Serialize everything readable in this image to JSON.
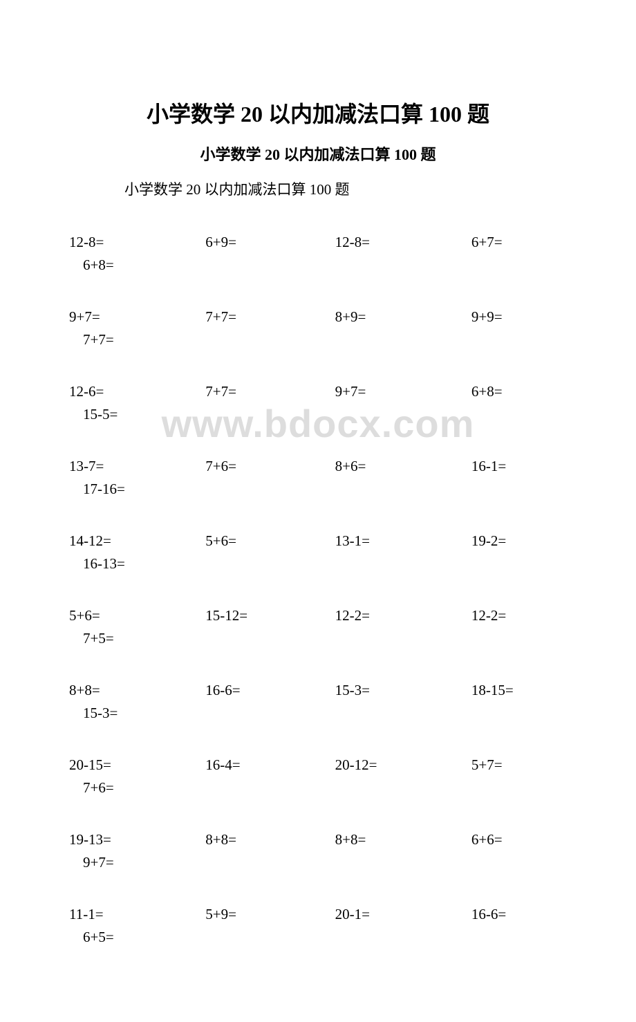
{
  "title_main": "小学数学 20 以内加减法口算 100 题",
  "title_sub": "小学数学 20 以内加减法口算 100 题",
  "title_text": "小学数学 20 以内加减法口算 100 题",
  "watermark": "www.bdocx.com",
  "colors": {
    "text": "#000000",
    "background": "#ffffff",
    "watermark": "#dddddd"
  },
  "typography": {
    "title_main_fontsize": 32,
    "title_sub_fontsize": 22,
    "body_fontsize": 21,
    "watermark_fontsize": 56
  },
  "problems": [
    {
      "c1": "12-8=",
      "c2": "6+9=",
      "c3": "12-8=",
      "c4": "6+7=",
      "c5": "6+8="
    },
    {
      "c1": "9+7=",
      "c2": "7+7=",
      "c3": "8+9=",
      "c4": "9+9=",
      "c5": "7+7="
    },
    {
      "c1": "12-6=",
      "c2": "7+7=",
      "c3": "9+7=",
      "c4": "6+8=",
      "c5": "15-5="
    },
    {
      "c1": "13-7=",
      "c2": "7+6=",
      "c3": "8+6=",
      "c4": "16-1=",
      "c5": "17-16="
    },
    {
      "c1": "14-12=",
      "c2": "5+6=",
      "c3": "13-1=",
      "c4": "19-2=",
      "c5": "16-13="
    },
    {
      "c1": "5+6=",
      "c2": "15-12=",
      "c3": "12-2=",
      "c4": "12-2=",
      "c5": "7+5="
    },
    {
      "c1": "8+8=",
      "c2": "16-6=",
      "c3": "15-3=",
      "c4": "18-15=",
      "c5": "15-3="
    },
    {
      "c1": "20-15=",
      "c2": "16-4=",
      "c3": "20-12=",
      "c4": "5+7=",
      "c5": "7+6="
    },
    {
      "c1": "19-13=",
      "c2": "8+8=",
      "c3": "8+8=",
      "c4": "6+6=",
      "c5": "9+7="
    },
    {
      "c1": "11-1=",
      "c2": "5+9=",
      "c3": "20-1=",
      "c4": "16-6=",
      "c5": "6+5="
    }
  ]
}
